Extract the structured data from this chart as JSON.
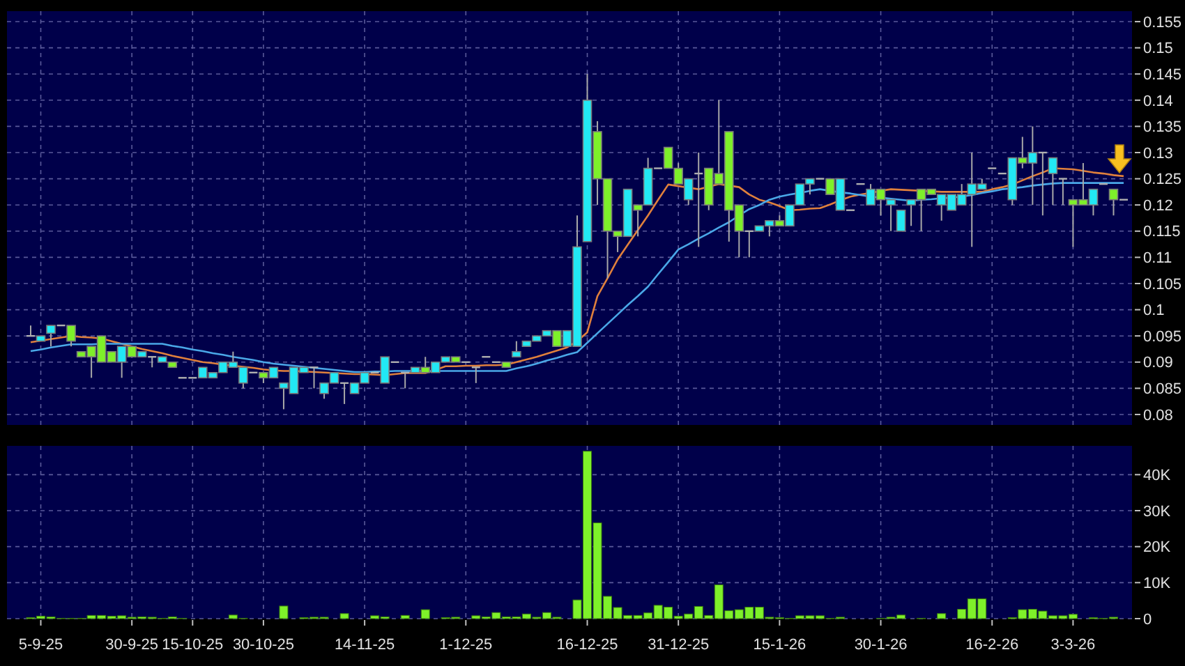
{
  "chart_data": [
    {
      "type": "candlestick",
      "categories": [
        null,
        null,
        null,
        null,
        null,
        null,
        null,
        null,
        null,
        null,
        null,
        null,
        null,
        null,
        null,
        null,
        null,
        null,
        null,
        null,
        null,
        null,
        null,
        null,
        null,
        null,
        null,
        null,
        null,
        null,
        null,
        null,
        null,
        null,
        null,
        null,
        null,
        null,
        null,
        null,
        null,
        null,
        null,
        null,
        null,
        null,
        null,
        null,
        null,
        null,
        null,
        null,
        null,
        null,
        null,
        null,
        null,
        null,
        null,
        null,
        null,
        null,
        null,
        null,
        null,
        null,
        null,
        null,
        null,
        null,
        null,
        null,
        null,
        null,
        null,
        null,
        null,
        null,
        null,
        null,
        null,
        null,
        null,
        null,
        null,
        null,
        null,
        null,
        null,
        null,
        null,
        null,
        null,
        null,
        null,
        null,
        null,
        null,
        null,
        null,
        null,
        null,
        null,
        null,
        null,
        null,
        null,
        null,
        null
      ],
      "ohlc": [
        [
          0.095,
          0.097,
          0.095,
          0.095
        ],
        [
          0.094,
          0.095,
          0.094,
          0.095
        ],
        [
          0.0955,
          0.097,
          0.093,
          0.097
        ],
        [
          0.097,
          0.097,
          0.097,
          0.097
        ],
        [
          0.097,
          0.097,
          0.093,
          0.094
        ],
        [
          0.092,
          0.092,
          0.091,
          0.091
        ],
        [
          0.093,
          0.093,
          0.087,
          0.091
        ],
        [
          0.095,
          0.095,
          0.09,
          0.09
        ],
        [
          0.092,
          0.092,
          0.09,
          0.09
        ],
        [
          0.09,
          0.093,
          0.087,
          0.093
        ],
        [
          0.093,
          0.093,
          0.091,
          0.091
        ],
        [
          0.091,
          0.092,
          0.091,
          0.092
        ],
        [
          0.091,
          0.091,
          0.089,
          0.091
        ],
        [
          0.09,
          0.091,
          0.09,
          0.091
        ],
        [
          0.09,
          0.09,
          0.089,
          0.089
        ],
        [
          0.087,
          0.087,
          0.087,
          0.087
        ],
        [
          0.087,
          0.087,
          0.087,
          0.087
        ],
        [
          0.087,
          0.089,
          0.087,
          0.089
        ],
        [
          0.087,
          0.088,
          0.087,
          0.088
        ],
        [
          0.088,
          0.09,
          0.088,
          0.09
        ],
        [
          0.089,
          0.092,
          0.089,
          0.09
        ],
        [
          0.086,
          0.089,
          0.085,
          0.089
        ],
        [
          0.088,
          0.088,
          0.088,
          0.088
        ],
        [
          0.088,
          0.088,
          0.086,
          0.087
        ],
        [
          0.087,
          0.089,
          0.087,
          0.089
        ],
        [
          0.085,
          0.086,
          0.081,
          0.086
        ],
        [
          0.084,
          0.089,
          0.084,
          0.089
        ],
        [
          0.088,
          0.089,
          0.088,
          0.089
        ],
        [
          0.089,
          0.089,
          0.085,
          0.089
        ],
        [
          0.084,
          0.086,
          0.083,
          0.086
        ],
        [
          0.086,
          0.088,
          0.086,
          0.088
        ],
        [
          0.086,
          0.086,
          0.082,
          0.086
        ],
        [
          0.084,
          0.086,
          0.084,
          0.086
        ],
        [
          0.086,
          0.088,
          0.086,
          0.088
        ],
        [
          0.088,
          0.088,
          0.088,
          0.088
        ],
        [
          0.086,
          0.091,
          0.086,
          0.091
        ],
        [
          0.09,
          0.09,
          0.09,
          0.09
        ],
        [
          0.088,
          0.088,
          0.085,
          0.088
        ],
        [
          0.088,
          0.089,
          0.088,
          0.089
        ],
        [
          0.089,
          0.091,
          0.088,
          0.088
        ],
        [
          0.088,
          0.09,
          0.088,
          0.09
        ],
        [
          0.09,
          0.091,
          0.09,
          0.091
        ],
        [
          0.091,
          0.091,
          0.09,
          0.09
        ],
        [
          0.09,
          0.09,
          0.09,
          0.09
        ],
        [
          0.089,
          0.089,
          0.086,
          0.089
        ],
        [
          0.091,
          0.091,
          0.091,
          0.091
        ],
        [
          0.09,
          0.09,
          0.09,
          0.09
        ],
        [
          0.09,
          0.09,
          0.089,
          0.089
        ],
        [
          0.091,
          0.094,
          0.091,
          0.092
        ],
        [
          0.093,
          0.094,
          0.093,
          0.094
        ],
        [
          0.094,
          0.095,
          0.094,
          0.095
        ],
        [
          0.095,
          0.096,
          0.095,
          0.096
        ],
        [
          0.096,
          0.096,
          0.093,
          0.093
        ],
        [
          0.093,
          0.096,
          0.093,
          0.096
        ],
        [
          0.093,
          0.118,
          0.093,
          0.112
        ],
        [
          0.113,
          0.145,
          0.113,
          0.14
        ],
        [
          0.134,
          0.136,
          0.12,
          0.125
        ],
        [
          0.125,
          0.125,
          0.106,
          0.115
        ],
        [
          0.115,
          0.115,
          0.111,
          0.114
        ],
        [
          0.114,
          0.123,
          0.114,
          0.123
        ],
        [
          0.12,
          0.12,
          0.114,
          0.119
        ],
        [
          0.12,
          0.129,
          0.12,
          0.127
        ],
        [
          0.127,
          0.127,
          0.127,
          0.127
        ],
        [
          0.131,
          0.131,
          0.127,
          0.127
        ],
        [
          0.127,
          0.128,
          0.124,
          0.124
        ],
        [
          0.121,
          0.125,
          0.12,
          0.125
        ],
        [
          0.126,
          0.13,
          0.112,
          0.126
        ],
        [
          0.127,
          0.127,
          0.119,
          0.12
        ],
        [
          0.126,
          0.14,
          0.124,
          0.124
        ],
        [
          0.134,
          0.134,
          0.113,
          0.119
        ],
        [
          0.12,
          0.12,
          0.11,
          0.115
        ],
        [
          0.115,
          0.115,
          0.11,
          0.115
        ],
        [
          0.115,
          0.116,
          0.115,
          0.116
        ],
        [
          0.116,
          0.117,
          0.114,
          0.117
        ],
        [
          0.117,
          0.118,
          0.116,
          0.116
        ],
        [
          0.116,
          0.12,
          0.116,
          0.12
        ],
        [
          0.12,
          0.124,
          0.12,
          0.124
        ],
        [
          0.124,
          0.125,
          0.122,
          0.125
        ],
        [
          0.125,
          0.125,
          0.125,
          0.125
        ],
        [
          0.125,
          0.125,
          0.122,
          0.122
        ],
        [
          0.119,
          0.125,
          0.119,
          0.125
        ],
        [
          0.119,
          0.119,
          0.119,
          0.119
        ],
        [
          0.124,
          0.124,
          0.124,
          0.124
        ],
        [
          0.12,
          0.124,
          0.12,
          0.123
        ],
        [
          0.123,
          0.123,
          0.118,
          0.121
        ],
        [
          0.12,
          0.121,
          0.115,
          0.121
        ],
        [
          0.115,
          0.119,
          0.115,
          0.119
        ],
        [
          0.12,
          0.121,
          0.116,
          0.121
        ],
        [
          0.123,
          0.123,
          0.115,
          0.121
        ],
        [
          0.123,
          0.123,
          0.122,
          0.122
        ],
        [
          0.12,
          0.122,
          0.117,
          0.122
        ],
        [
          0.119,
          0.122,
          0.119,
          0.122
        ],
        [
          0.12,
          0.124,
          0.12,
          0.122
        ],
        [
          0.122,
          0.13,
          0.112,
          0.124
        ],
        [
          0.123,
          0.125,
          0.123,
          0.124
        ],
        [
          0.127,
          0.127,
          0.127,
          0.127
        ],
        [
          0.126,
          0.126,
          0.126,
          0.126
        ],
        [
          0.121,
          0.129,
          0.12,
          0.129
        ],
        [
          0.129,
          0.133,
          0.127,
          0.128
        ],
        [
          0.128,
          0.135,
          0.12,
          0.13
        ],
        [
          0.13,
          0.13,
          0.118,
          0.13
        ],
        [
          0.126,
          0.129,
          0.12,
          0.129
        ],
        [
          0.125,
          0.125,
          0.12,
          0.125
        ],
        [
          0.121,
          0.121,
          0.112,
          0.12
        ],
        [
          0.121,
          0.128,
          0.12,
          0.12
        ],
        [
          0.12,
          0.123,
          0.118,
          0.123
        ],
        [
          0.124,
          0.124,
          0.124,
          0.124
        ],
        [
          0.123,
          0.123,
          0.118,
          0.121
        ],
        [
          0.121,
          0.121,
          0.121,
          0.121
        ]
      ],
      "series": [
        {
          "type": "line",
          "color": "#e0803c",
          "values": [
            0.0938,
            0.0941,
            0.0944,
            0.0947,
            0.095,
            0.0948,
            0.0947,
            0.0945,
            0.094,
            0.0935,
            0.093,
            0.0925,
            0.0921,
            0.0917,
            0.0912,
            0.0908,
            0.0904,
            0.09,
            0.0898,
            0.0895,
            0.0893,
            0.0891,
            0.0889,
            0.0886,
            0.0884,
            0.0883,
            0.0883,
            0.0882,
            0.0881,
            0.088,
            0.0879,
            0.0878,
            0.0877,
            0.0877,
            0.0876,
            0.0875,
            0.0877,
            0.0879,
            0.0879,
            0.0879,
            0.0885,
            0.0892,
            0.0892,
            0.0893,
            0.0893,
            0.0894,
            0.0894,
            0.0895,
            0.09,
            0.0905,
            0.091,
            0.0916,
            0.0922,
            0.0928,
            0.094,
            0.0957,
            0.1026,
            0.106,
            0.1096,
            0.1124,
            0.1152,
            0.118,
            0.121,
            0.1239,
            0.1236,
            0.1233,
            0.123,
            0.1235,
            0.124,
            0.1237,
            0.1234,
            0.122,
            0.121,
            0.1205,
            0.1198,
            0.119,
            0.1191,
            0.1193,
            0.1194,
            0.1201,
            0.1209,
            0.1216,
            0.122,
            0.1223,
            0.1227,
            0.123,
            0.1229,
            0.1228,
            0.1227,
            0.1226,
            0.1225,
            0.1225,
            0.1225,
            0.1225,
            0.1225,
            0.123,
            0.1234,
            0.1239,
            0.1247,
            0.1255,
            0.1262,
            0.127,
            0.1269,
            0.1268,
            0.1265,
            0.1262,
            0.126,
            0.1257,
            0.1255
          ]
        },
        {
          "type": "line",
          "color": "#4aa8e8",
          "values": [
            0.0921,
            0.0924,
            0.0928,
            0.0931,
            0.0934,
            0.0934,
            0.0934,
            0.0935,
            0.0935,
            0.0935,
            0.0935,
            0.0935,
            0.0935,
            0.0935,
            0.0931,
            0.0928,
            0.0924,
            0.0921,
            0.0917,
            0.0914,
            0.091,
            0.0907,
            0.0904,
            0.09,
            0.0897,
            0.0895,
            0.0893,
            0.0891,
            0.0889,
            0.0887,
            0.0885,
            0.0883,
            0.0881,
            0.0881,
            0.0882,
            0.0882,
            0.0883,
            0.0883,
            0.0883,
            0.0883,
            0.0883,
            0.0883,
            0.0883,
            0.0883,
            0.0883,
            0.0883,
            0.0883,
            0.0883,
            0.0888,
            0.0892,
            0.0897,
            0.0903,
            0.0908,
            0.0914,
            0.0919,
            0.0937,
            0.0955,
            0.0973,
            0.0991,
            0.1009,
            0.1026,
            0.1044,
            0.1068,
            0.1091,
            0.1115,
            0.1125,
            0.1136,
            0.1146,
            0.1157,
            0.1167,
            0.118,
            0.1192,
            0.12,
            0.121,
            0.1216,
            0.122,
            0.1223,
            0.1227,
            0.123,
            0.1227,
            0.1224,
            0.1222,
            0.1219,
            0.1216,
            0.1214,
            0.1212,
            0.121,
            0.1208,
            0.121,
            0.1211,
            0.1213,
            0.1214,
            0.1216,
            0.1219,
            0.1223,
            0.1226,
            0.123,
            0.1232,
            0.1234,
            0.1237,
            0.1239,
            0.1241,
            0.1242,
            0.1242,
            0.1242,
            0.1242,
            0.1242,
            0.1242,
            0.1242
          ]
        }
      ],
      "ylim": [
        0.078,
        0.157
      ],
      "yticks": [
        0.08,
        0.085,
        0.09,
        0.095,
        0.1,
        0.105,
        0.11,
        0.115,
        0.12,
        0.125,
        0.13,
        0.135,
        0.14,
        0.145,
        0.15,
        0.155
      ],
      "grid": true,
      "tick_labels": "y"
    },
    {
      "type": "bar",
      "categories": [
        null,
        "5-9-25",
        null,
        null,
        null,
        null,
        null,
        null,
        null,
        null,
        "30-9-25",
        null,
        null,
        null,
        null,
        null,
        "15-10-25",
        null,
        null,
        null,
        null,
        null,
        null,
        "30-10-25",
        null,
        null,
        null,
        null,
        null,
        null,
        null,
        null,
        null,
        "14-11-25",
        null,
        null,
        null,
        null,
        null,
        null,
        null,
        null,
        null,
        "1-12-25",
        null,
        null,
        null,
        null,
        null,
        null,
        null,
        null,
        null,
        null,
        null,
        "16-12-25",
        null,
        null,
        null,
        null,
        null,
        null,
        null,
        null,
        "31-12-25",
        null,
        null,
        null,
        null,
        null,
        null,
        null,
        null,
        null,
        "15-1-26",
        null,
        null,
        null,
        null,
        null,
        null,
        null,
        null,
        null,
        "30-1-26",
        null,
        null,
        null,
        null,
        null,
        null,
        null,
        null,
        null,
        null,
        "16-2-26",
        null,
        null,
        null,
        null,
        null,
        null,
        null,
        "3-3-26",
        null,
        null,
        null,
        null,
        null
      ],
      "values": [
        300,
        700,
        500,
        100,
        100,
        100,
        900,
        900,
        700,
        800,
        400,
        500,
        400,
        100,
        500,
        100,
        0,
        0,
        0,
        0,
        1000,
        100,
        0,
        0,
        0,
        3500,
        0,
        300,
        400,
        400,
        0,
        1400,
        0,
        0,
        800,
        500,
        0,
        900,
        0,
        2500,
        0,
        300,
        400,
        0,
        800,
        500,
        1700,
        500,
        500,
        1300,
        400,
        1700,
        400,
        0,
        5200,
        46500,
        26600,
        6200,
        3100,
        900,
        900,
        1600,
        3700,
        3200,
        700,
        1300,
        3400,
        900,
        9400,
        2200,
        2500,
        3200,
        3200,
        400,
        300,
        100,
        800,
        800,
        800,
        100,
        400,
        0,
        0,
        0,
        100,
        400,
        1000,
        0,
        100,
        0,
        1400,
        0,
        2600,
        5500,
        5500,
        0,
        0,
        300,
        2500,
        2600,
        2100,
        800,
        800,
        1200,
        0,
        300,
        100,
        400,
        0
      ],
      "color": "#7ef02a",
      "ylim": [
        0,
        48000
      ],
      "yticks": [
        0,
        {
          "value": 10000,
          "label": "10K"
        },
        {
          "value": 20000,
          "label": "20K"
        },
        {
          "value": 30000,
          "label": "30K"
        },
        {
          "value": 40000,
          "label": "40K"
        }
      ],
      "grid": true
    }
  ]
}
